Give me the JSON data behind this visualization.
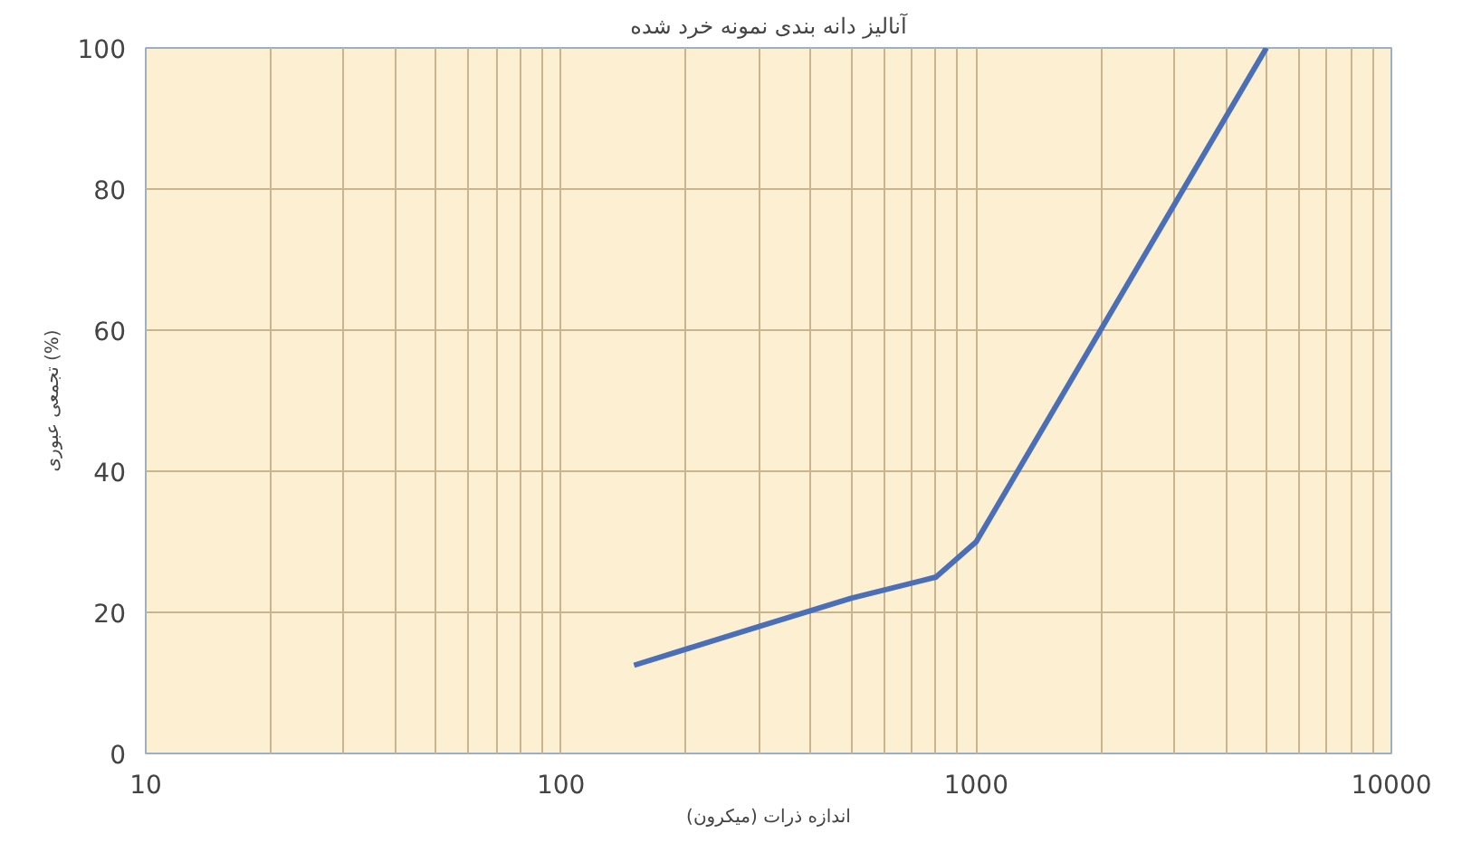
{
  "chart_data": {
    "type": "line",
    "title": "آنالیز دانه بندی نمونه خرد شده",
    "xlabel": "اندازه ذرات (میکرون)",
    "ylabel": "تجمعی عبوری (%)",
    "log": "x",
    "xlim": [
      10,
      10000
    ],
    "xticks": [
      10,
      100,
      1000,
      10000
    ],
    "ylim": [
      0,
      100
    ],
    "yticks": [
      0,
      20,
      40,
      60,
      80,
      100
    ],
    "grid": true,
    "marker": "none",
    "line_style": "solid",
    "series": [
      {
        "color": "#4a6fb8",
        "x": [
          150,
          300,
          500,
          800,
          1000,
          5000
        ],
        "values": [
          12.5,
          18,
          22,
          25,
          30,
          100
        ]
      }
    ]
  }
}
